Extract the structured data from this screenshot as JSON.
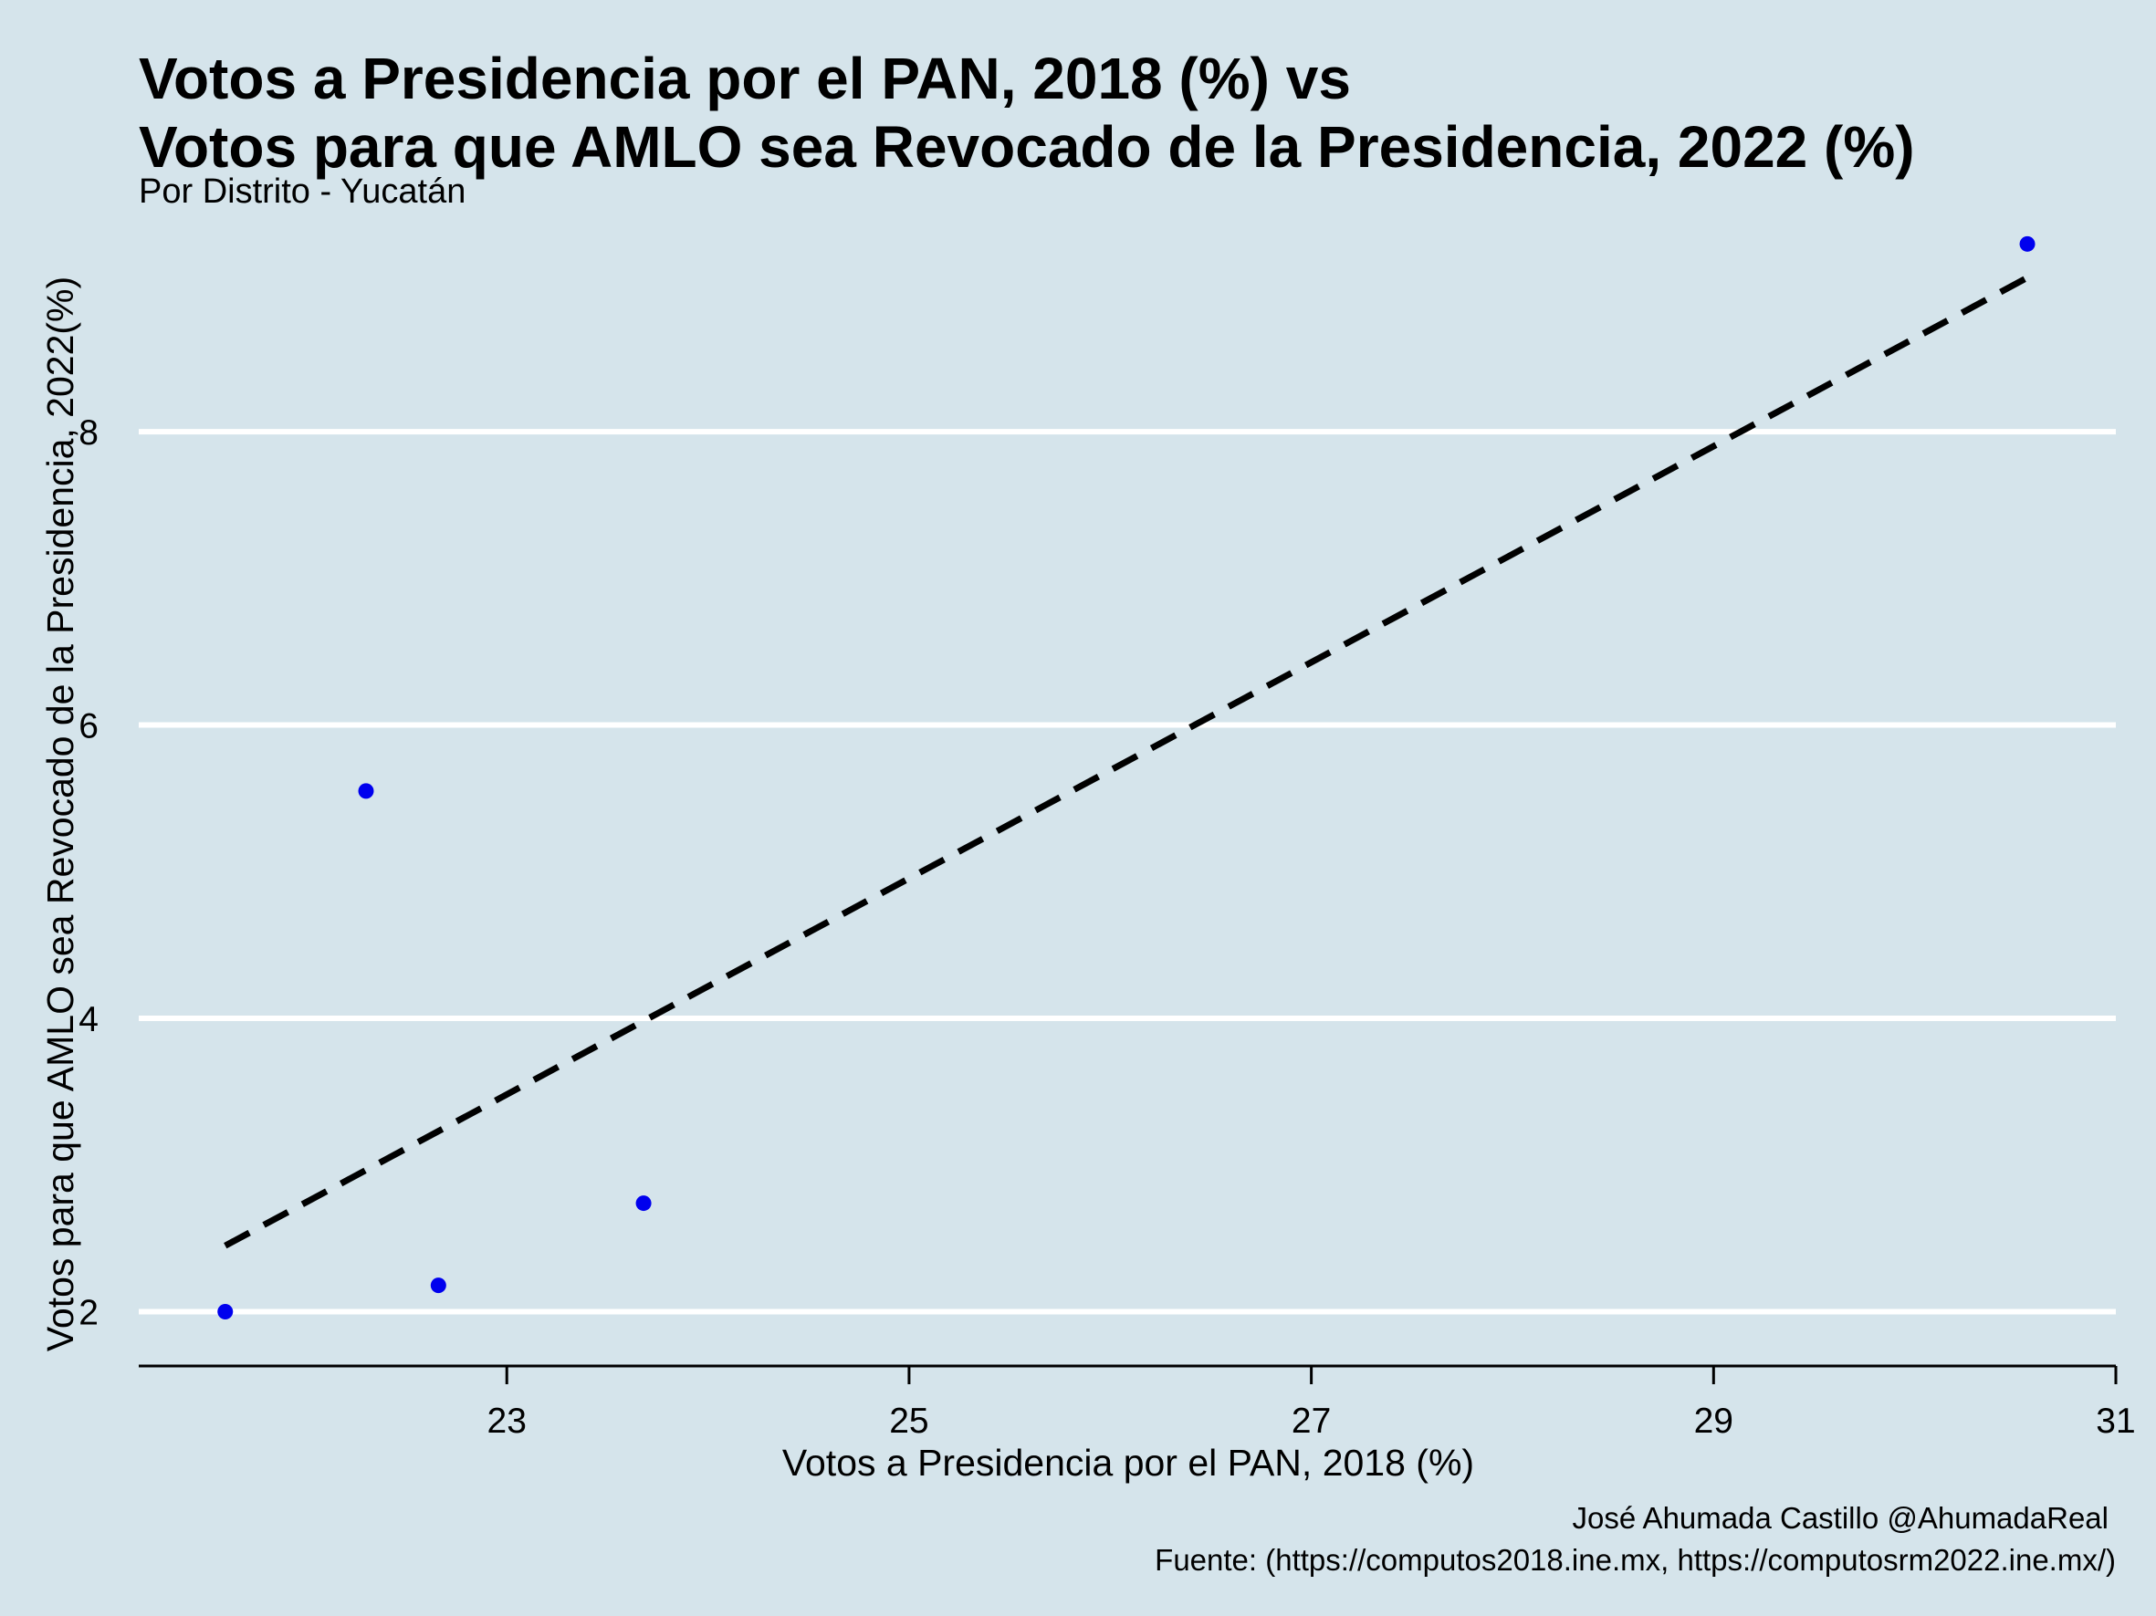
{
  "chart_data": {
    "type": "scatter",
    "title_line1": "Votos a Presidencia por el PAN, 2018 (%)  vs",
    "title_line2": "Votos para que AMLO sea Revocado de la Presidencia, 2022 (%)",
    "subtitle": "Por Distrito - Yucatán",
    "xlabel": "Votos a Presidencia por el PAN, 2018 (%)",
    "ylabel": "Votos para que AMLO sea Revocado de la Presidencia, 2022(%)",
    "caption_line1": "José Ahumada Castillo @AhumadaReal",
    "caption_line2": "Fuente: (https://computos2018.ine.mx, https://computosrm2022.ine.mx/)",
    "xlim": [
      21.17,
      31.0
    ],
    "ylim": [
      1.63,
      9.45
    ],
    "x_ticks": [
      23,
      25,
      27,
      29,
      31
    ],
    "y_ticks": [
      2,
      4,
      6,
      8
    ],
    "grid": "horizontal",
    "point_color": "#0000ee",
    "trend_color": "#000000",
    "points": [
      {
        "x": 21.6,
        "y": 2.0
      },
      {
        "x": 22.3,
        "y": 5.55
      },
      {
        "x": 22.66,
        "y": 2.18
      },
      {
        "x": 23.68,
        "y": 2.74
      },
      {
        "x": 30.56,
        "y": 9.28
      }
    ],
    "trend_line": {
      "x": [
        21.6,
        30.56
      ],
      "y": [
        2.45,
        9.05
      ]
    }
  }
}
